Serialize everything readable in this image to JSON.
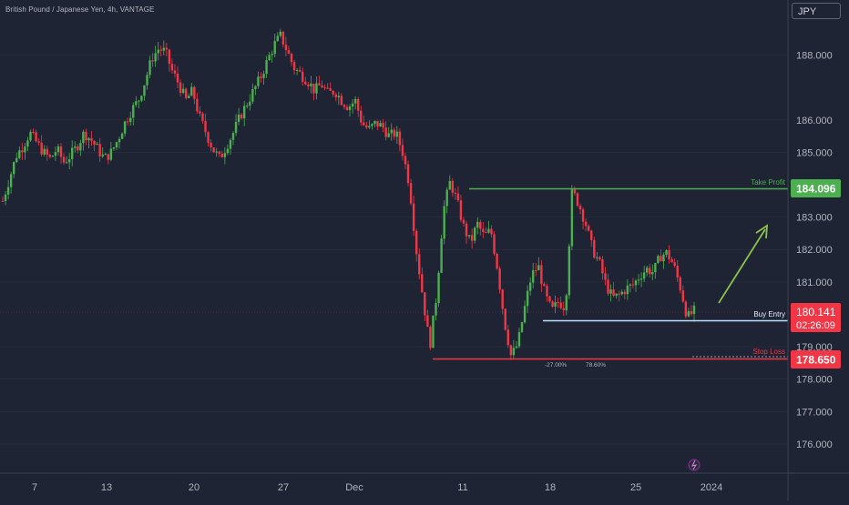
{
  "title": "British Pound / Japanese Yen, 4h, VANTAGE",
  "currency": "JPY",
  "colors": {
    "background": "#1e2433",
    "up": "#4caf50",
    "down": "#f23645",
    "take_profit": "#4caf50",
    "buy_entry": "#bbdefb",
    "stop_loss": "#f23645",
    "arrow": "#8bc34a",
    "axis_text": "#b2b5be"
  },
  "chart_data": {
    "type": "candlestick",
    "y_ticks": [
      "188.000",
      "186.000",
      "185.000",
      "183.000",
      "182.000",
      "181.000",
      "179.000",
      "178.000",
      "177.000",
      "176.000"
    ],
    "x_ticks": [
      "7",
      "13",
      "20",
      "27",
      "Dec",
      "11",
      "18",
      "25",
      "2024"
    ],
    "ylim": [
      175.1,
      189.7
    ],
    "series_close": [
      183.5,
      184.2,
      184.9,
      185.2,
      185.6,
      185.3,
      185.0,
      184.8,
      185.1,
      184.7,
      184.9,
      185.2,
      185.6,
      185.4,
      185.1,
      184.8,
      185.0,
      185.4,
      185.9,
      186.3,
      186.6,
      187.2,
      187.9,
      188.2,
      188.1,
      187.5,
      187.1,
      186.6,
      186.9,
      186.1,
      185.6,
      185.1,
      184.8,
      185.2,
      185.6,
      186.1,
      186.5,
      186.9,
      187.3,
      187.8,
      188.3,
      188.6,
      188.1,
      187.6,
      187.4,
      187.2,
      186.9,
      187.1,
      186.8,
      186.9,
      186.6,
      186.4,
      186.6,
      185.9,
      185.7,
      185.9,
      185.8,
      185.5,
      185.6,
      185.0,
      184.0,
      182.0,
      180.5,
      179.0,
      180.6,
      183.2,
      184.1,
      183.5,
      182.7,
      182.2,
      182.8,
      182.4,
      182.6,
      181.4,
      179.8,
      178.7,
      179.1,
      180.2,
      181.2,
      181.5,
      180.6,
      180.1,
      180.4,
      180.2,
      183.8,
      183.4,
      182.8,
      182.0,
      181.6,
      180.9,
      180.5,
      180.6,
      180.8,
      180.9,
      181.2,
      181.4,
      181.3,
      181.8,
      181.9,
      181.5,
      180.8,
      179.9,
      180.1
    ],
    "levels": [
      {
        "label": "Take Profit",
        "price": "184.096"
      },
      {
        "label": "Buy Entry",
        "price": "180.141",
        "countdown": "02:26:09"
      },
      {
        "label": "Stop Loss",
        "price": "178.650"
      }
    ],
    "annotations": [
      "-27.00%",
      "78.60%"
    ]
  }
}
